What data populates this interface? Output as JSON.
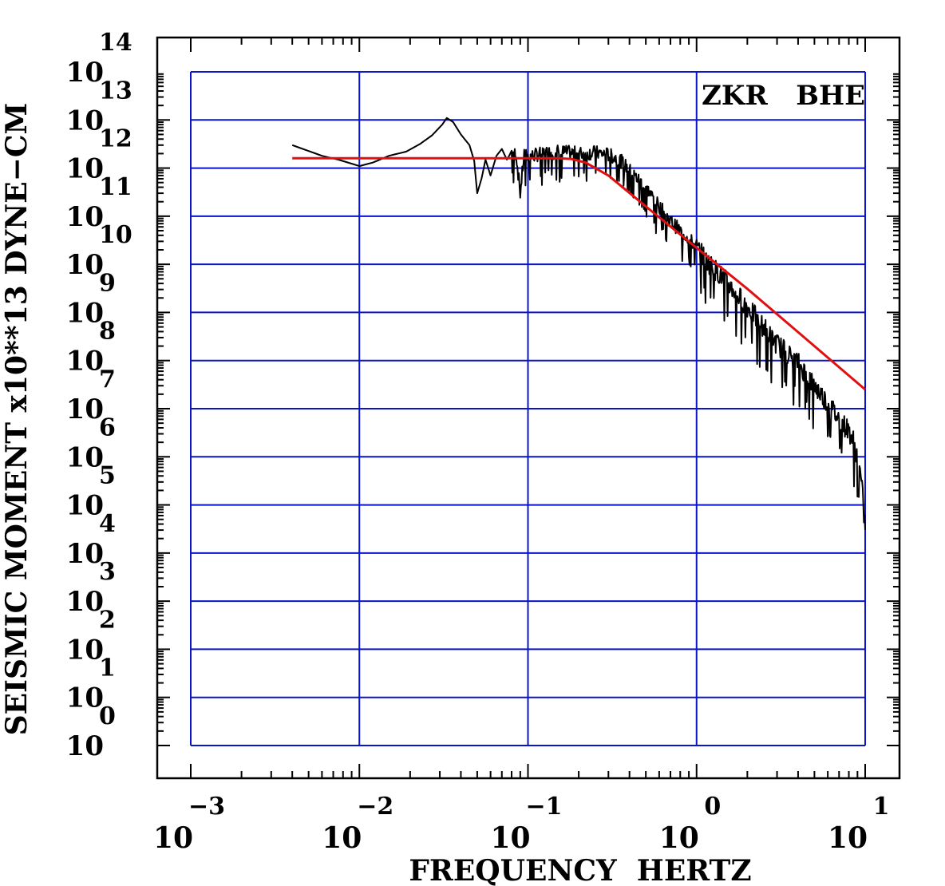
{
  "chart_data": {
    "type": "line",
    "title": "",
    "station_label": "ZKR   BHE",
    "xlabel": "FREQUENCY  HERTZ",
    "ylabel": "SEISMIC MOMENT x10**13 DYNE−CM",
    "x_scale": "log",
    "y_scale": "log",
    "xlim": [
      0.001,
      10
    ],
    "ylim": [
      1,
      100000000000000.0
    ],
    "grid": true,
    "x_tick_labels": [
      {
        "base": "10",
        "exp": "−3"
      },
      {
        "base": "10",
        "exp": "−2"
      },
      {
        "base": "10",
        "exp": "−1"
      },
      {
        "base": "10",
        "exp": "0"
      },
      {
        "base": "10",
        "exp": "1"
      }
    ],
    "y_tick_labels": [
      {
        "base": "10",
        "exp": "0"
      },
      {
        "base": "10",
        "exp": "1"
      },
      {
        "base": "10",
        "exp": "2"
      },
      {
        "base": "10",
        "exp": "3"
      },
      {
        "base": "10",
        "exp": "4"
      },
      {
        "base": "10",
        "exp": "5"
      },
      {
        "base": "10",
        "exp": "6"
      },
      {
        "base": "10",
        "exp": "7"
      },
      {
        "base": "10",
        "exp": "8"
      },
      {
        "base": "10",
        "exp": "9"
      },
      {
        "base": "10",
        "exp": "10"
      },
      {
        "base": "10",
        "exp": "11"
      },
      {
        "base": "10",
        "exp": "12"
      },
      {
        "base": "10",
        "exp": "13"
      },
      {
        "base": "10",
        "exp": "14"
      }
    ],
    "colors": {
      "grid": "#0a14c8",
      "spectrum": "#000000",
      "model": "#e01010"
    },
    "series": [
      {
        "style": "noisy-spectrum",
        "color": "#000000",
        "x": [
          0.004,
          0.006,
          0.0075,
          0.01,
          0.012,
          0.015,
          0.019,
          0.023,
          0.027,
          0.031,
          0.033,
          0.036,
          0.04,
          0.045,
          0.048,
          0.05,
          0.053,
          0.056,
          0.06,
          0.065,
          0.07,
          0.075,
          0.08,
          0.085,
          0.09,
          0.095,
          0.1,
          0.12,
          0.15,
          0.2,
          0.25,
          0.3,
          0.35,
          0.4,
          0.5,
          0.6,
          0.7,
          0.8,
          0.9,
          1.0,
          1.2,
          1.5,
          2.0,
          2.5,
          3.0,
          4.0,
          5.0,
          6.0,
          7.0,
          8.0,
          8.5,
          9.0,
          9.5,
          10.0
        ],
        "y": [
          3000000000000.0,
          1800000000000.0,
          1500000000000.0,
          1100000000000.0,
          1300000000000.0,
          1800000000000.0,
          2200000000000.0,
          3200000000000.0,
          4800000000000.0,
          8000000000000.0,
          11000000000000.0,
          9000000000000.0,
          5000000000000.0,
          3000000000000.0,
          1400000000000.0,
          300000000000.0,
          600000000000.0,
          1500000000000.0,
          700000000000.0,
          1800000000000.0,
          2500000000000.0,
          1500000000000.0,
          2200000000000.0,
          2000000000000.0,
          300000000000.0,
          2000000000000.0,
          1700000000000.0,
          2000000000000.0,
          2200000000000.0,
          2000000000000.0,
          2100000000000.0,
          1900000000000.0,
          1500000000000.0,
          900000000000.0,
          400000000000.0,
          160000000000.0,
          80000000000.0,
          50000000000.0,
          35000000000.0,
          22000000000.0,
          10000000000.0,
          4500000000.0,
          1300000000.0,
          500000000.0,
          220000000.0,
          90000000.0,
          30000000.0,
          13000000.0,
          6000000.0,
          3500000.0,
          2200000.0,
          1000000.0,
          300000.0,
          30000.0
        ]
      },
      {
        "style": "model-fit",
        "color": "#e01010",
        "x": [
          0.004,
          0.01,
          0.05,
          0.1,
          0.15,
          0.18,
          0.22,
          0.3,
          0.5,
          1.0,
          2.0,
          5.0,
          10.0
        ],
        "y": [
          1600000000000.0,
          1600000000000.0,
          1600000000000.0,
          1600000000000.0,
          1600000000000.0,
          1550000000000.0,
          1300000000000.0,
          700000000000.0,
          160000000000.0,
          22000000000.0,
          3100000000.0,
          200000000.0,
          25000000.0
        ]
      }
    ]
  }
}
